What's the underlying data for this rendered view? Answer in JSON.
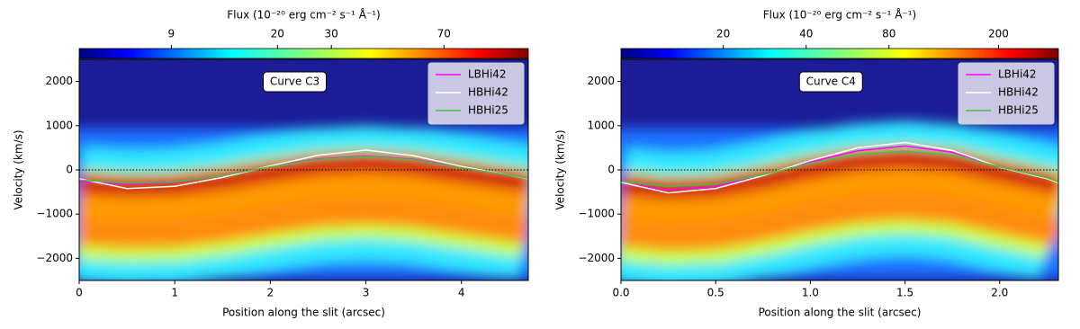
{
  "chart_data": [
    {
      "type": "line",
      "annotation": "Curve C3",
      "xlabel": "Position along the slit (arcsec)",
      "ylabel": "Velocity (km/s)",
      "xlim": [
        0,
        4.7
      ],
      "ylim": [
        -2500,
        2500
      ],
      "xticks": [
        0,
        1,
        2,
        3,
        4
      ],
      "yticks": [
        {
          "value": -2000,
          "label": "−2000"
        },
        {
          "value": -1000,
          "label": "−1000"
        },
        0,
        1000,
        2000
      ],
      "legend": "upper right",
      "colorbar": {
        "label": "Flux (10⁻²⁰ erg cm⁻² s⁻¹ Å⁻¹)",
        "log": true,
        "lim": [
          4.5,
          132
        ],
        "ticks": [
          9,
          20,
          30,
          70
        ]
      },
      "x": [
        0,
        0.5,
        1,
        1.5,
        2,
        2.5,
        3,
        3.5,
        4,
        4.5,
        4.7
      ],
      "series": [
        {
          "name": "LBHi42",
          "color": "#ff00ff",
          "values": [
            -260,
            -320,
            -280,
            -130,
            80,
            250,
            310,
            240,
            60,
            -120,
            -190
          ]
        },
        {
          "name": "HBHi42",
          "color": "#ffffff",
          "values": [
            -200,
            -420,
            -370,
            -170,
            90,
            330,
            450,
            320,
            80,
            -120,
            -200
          ]
        },
        {
          "name": "HBHi25",
          "color": "#4cbb4c",
          "values": [
            -230,
            -300,
            -270,
            -130,
            70,
            240,
            300,
            230,
            50,
            -120,
            -190
          ]
        }
      ]
    },
    {
      "type": "line",
      "annotation": "Curve C4",
      "xlabel": "Position along the slit (arcsec)",
      "ylabel": "Velocity (km/s)",
      "xlim": [
        0,
        2.31
      ],
      "ylim": [
        -2500,
        2500
      ],
      "xticks": [
        {
          "value": 0,
          "label": "0.0"
        },
        0.5,
        {
          "value": 1,
          "label": "1.0"
        },
        1.5,
        {
          "value": 2,
          "label": "2.0"
        }
      ],
      "yticks": [
        {
          "value": -2000,
          "label": "−2000"
        },
        {
          "value": -1000,
          "label": "−1000"
        },
        0,
        1000,
        2000
      ],
      "legend": "upper right",
      "colorbar": {
        "label": "Flux (10⁻²⁰ erg cm⁻² s⁻¹ Å⁻¹)",
        "log": true,
        "lim": [
          8.5,
          330
        ],
        "ticks": [
          20,
          40,
          80,
          200
        ]
      },
      "x": [
        0,
        0.25,
        0.5,
        0.75,
        1,
        1.25,
        1.5,
        1.75,
        2,
        2.25,
        2.31
      ],
      "series": [
        {
          "name": "LBHi42",
          "color": "#ff00ff",
          "values": [
            -300,
            -450,
            -380,
            -120,
            180,
            430,
            540,
            400,
            60,
            -190,
            -280
          ]
        },
        {
          "name": "HBHi42",
          "color": "#ffffff",
          "values": [
            -280,
            -520,
            -420,
            -130,
            210,
            500,
            620,
            440,
            60,
            -200,
            -290
          ]
        },
        {
          "name": "HBHi25",
          "color": "#4cbb4c",
          "values": [
            -260,
            -370,
            -320,
            -110,
            150,
            350,
            420,
            330,
            70,
            -180,
            -270
          ]
        }
      ]
    }
  ]
}
